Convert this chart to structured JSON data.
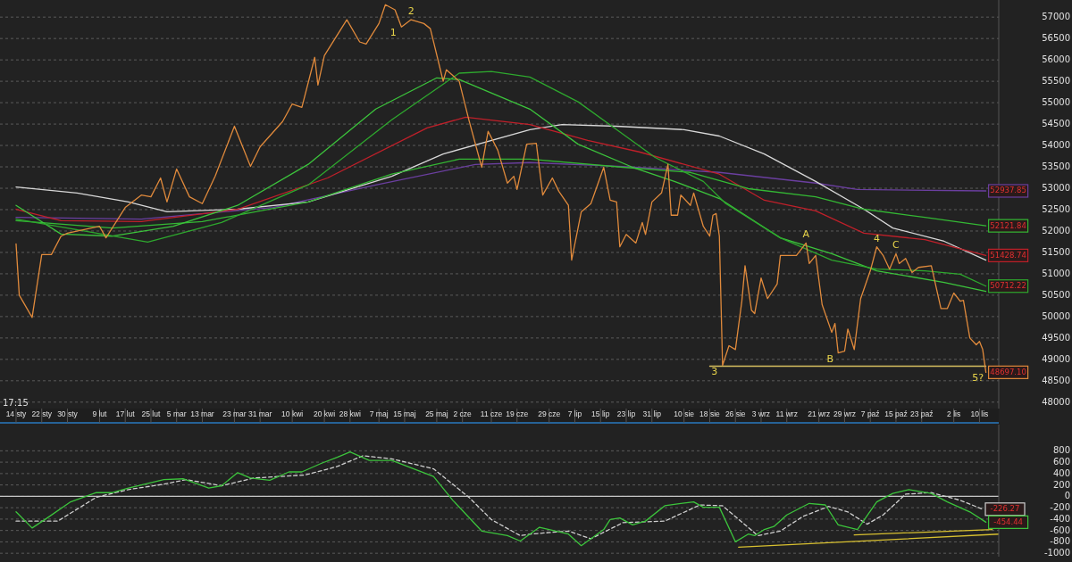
{
  "chart_data": [
    {
      "type": "line",
      "xlim": [
        "--01-09",
        "--11-16"
      ],
      "xticks": [
        {
          "value": "--01-14",
          "label": "14 sty"
        },
        {
          "value": "--01-22",
          "label": "22 sty"
        },
        {
          "value": "--01-30",
          "label": "30 sty"
        },
        {
          "value": "--02-09",
          "label": "9 lut"
        },
        {
          "value": "--02-17",
          "label": "17 lut"
        },
        {
          "value": "--02-25",
          "label": "25 lut"
        },
        {
          "value": "--03-05",
          "label": "5 mar"
        },
        {
          "value": "--03-13",
          "label": "13 mar"
        },
        {
          "value": "--03-23",
          "label": "23 mar"
        },
        {
          "value": "--03-31",
          "label": "31 mar"
        },
        {
          "value": "--04-10",
          "label": "10 kwi"
        },
        {
          "value": "--04-20",
          "label": "20 kwi"
        },
        {
          "value": "--04-28",
          "label": "28 kwi"
        },
        {
          "value": "--05-07",
          "label": "7 maj"
        },
        {
          "value": "--05-15",
          "label": "15 maj"
        },
        {
          "value": "--05-25",
          "label": "25 maj"
        },
        {
          "value": "--06-02",
          "label": "2 cze"
        },
        {
          "value": "--06-11",
          "label": "11 cze"
        },
        {
          "value": "--06-19",
          "label": "19 cze"
        },
        {
          "value": "--06-29",
          "label": "29 cze"
        },
        {
          "value": "--07-07",
          "label": "7 lip"
        },
        {
          "value": "--07-15",
          "label": "15 lip"
        },
        {
          "value": "--07-23",
          "label": "23 lip"
        },
        {
          "value": "--07-31",
          "label": "31 lip"
        },
        {
          "value": "--08-10",
          "label": "10 sie"
        },
        {
          "value": "--08-18",
          "label": "18 sie"
        },
        {
          "value": "--08-26",
          "label": "26 sie"
        },
        {
          "value": "--09-03",
          "label": "3 wrz"
        },
        {
          "value": "--09-11",
          "label": "11 wrz"
        },
        {
          "value": "--09-21",
          "label": "21 wrz"
        },
        {
          "value": "--09-29",
          "label": "29 wrz"
        },
        {
          "value": "--10-07",
          "label": "7 paź"
        },
        {
          "value": "--10-15",
          "label": "15 paź"
        },
        {
          "value": "--10-23",
          "label": "23 paź"
        },
        {
          "value": "--11-02",
          "label": "2 lis"
        },
        {
          "value": "--11-10",
          "label": "10 lis"
        }
      ],
      "ylim": [
        47850,
        57400
      ],
      "yticks": [
        48000,
        48500,
        49000,
        49500,
        50000,
        50500,
        51000,
        51500,
        52000,
        52500,
        53000,
        53500,
        54000,
        54500,
        55000,
        55500,
        56000,
        56500,
        57000
      ],
      "grid": "y",
      "annotations": [
        {
          "text": "1",
          "x": "--05-14",
          "y": 56770
        },
        {
          "text": "2",
          "x": "--05-17",
          "y": 56940
        },
        {
          "text": "3",
          "x": "--08-22",
          "y": 48860
        },
        {
          "text": "A",
          "x": "--09-17",
          "y": 51720
        },
        {
          "text": "B",
          "x": "--09-27",
          "y": 49150
        },
        {
          "text": "4",
          "x": "--10-09",
          "y": 51630
        },
        {
          "text": "C",
          "x": "--10-15",
          "y": 51470
        },
        {
          "text": "5?",
          "x": "--11-12",
          "y": 48697.1
        },
        "17:15"
      ],
      "series": [
        {
          "color": "#6b3fa0",
          "x": [
            "--01-14",
            "--02-22",
            "--04-04",
            "--05-06",
            "--06-06",
            "--06-23",
            "--07-22",
            "--08-21",
            "--09-20",
            "--10-03",
            "--11-12"
          ],
          "values": [
            52320,
            52280,
            52550,
            53075,
            53555,
            53600,
            53510,
            53370,
            53120,
            52970,
            52937.85
          ],
          "value_labels": [
            null,
            null,
            null,
            null,
            null,
            null,
            null,
            null,
            null,
            null,
            "52937.85"
          ]
        },
        {
          "color": "#d8d8d8",
          "x": [
            "--01-14",
            "--02-02",
            "--02-18",
            "--03-02",
            "--03-24",
            "--04-15",
            "--05-11",
            "--05-27",
            "--06-23",
            "--07-03",
            "--07-20",
            "--08-10",
            "--08-21",
            "--09-04",
            "--09-20",
            "--10-05",
            "--10-14",
            "--10-30",
            "--11-12"
          ],
          "values": [
            53030,
            52890,
            52680,
            52450,
            52510,
            52680,
            53280,
            53800,
            54370,
            54490,
            54450,
            54370,
            54220,
            53800,
            53160,
            52510,
            52070,
            51760,
            51320
          ]
        },
        {
          "color": "#c0202a",
          "x": [
            "--01-14",
            "--01-28",
            "--02-22",
            "--03-24",
            "--04-21",
            "--05-22",
            "--06-03",
            "--06-23",
            "--07-11",
            "--07-27",
            "--08-21",
            "--09-04",
            "--09-20",
            "--10-05",
            "--10-24",
            "--11-12"
          ],
          "values": [
            52510,
            52240,
            52220,
            52510,
            53240,
            54410,
            54660,
            54490,
            54120,
            53850,
            53330,
            52720,
            52470,
            51950,
            51800,
            51428.74
          ],
          "value_labels": [
            null,
            null,
            null,
            null,
            null,
            null,
            null,
            null,
            null,
            null,
            null,
            null,
            null,
            null,
            null,
            "51428.74"
          ]
        },
        {
          "color": "#34b834",
          "x": [
            "--01-14",
            "--02-13",
            "--03-13",
            "--04-15",
            "--05-11",
            "--06-01",
            "--06-23",
            "--07-22",
            "--08-12",
            "--08-30",
            "--09-20",
            "--10-05",
            "--10-24",
            "--11-12"
          ],
          "values": [
            52240,
            52070,
            52220,
            52680,
            53330,
            53680,
            53680,
            53490,
            53370,
            52990,
            52800,
            52510,
            52320,
            52121.84
          ],
          "value_labels": [
            null,
            null,
            null,
            null,
            null,
            null,
            null,
            null,
            null,
            null,
            null,
            null,
            null,
            "52121.84"
          ]
        },
        {
          "color": "#3cc43c",
          "x": [
            "--01-14",
            "--01-28",
            "--02-13",
            "--03-04",
            "--03-24",
            "--04-15",
            "--05-06",
            "--05-25",
            "--06-01",
            "--06-23",
            "--07-08",
            "--07-25",
            "--08-07",
            "--08-21",
            "--09-09",
            "--09-25",
            "--10-09",
            "--10-30",
            "--11-12"
          ],
          "values": [
            52600,
            51930,
            51880,
            52110,
            52600,
            53560,
            54850,
            55580,
            55540,
            54850,
            54030,
            53490,
            53160,
            52760,
            51840,
            51470,
            51070,
            50800,
            50590
          ]
        },
        {
          "color": "#2ea82e",
          "x": [
            "--01-14",
            "--02-24",
            "--03-19",
            "--04-15",
            "--05-11",
            "--06-01",
            "--06-11",
            "--06-23",
            "--07-08",
            "--07-20",
            "--08-01",
            "--08-16",
            "--08-23",
            "--09-09",
            "--09-25",
            "--10-09",
            "--10-24",
            "--11-04",
            "--11-12"
          ],
          "values": [
            52280,
            51740,
            52200,
            53080,
            54600,
            55690,
            55730,
            55600,
            55020,
            54370,
            53720,
            53160,
            52640,
            51840,
            51320,
            51110,
            51070,
            50990,
            50712.22
          ],
          "value_labels": [
            null,
            null,
            null,
            null,
            null,
            null,
            null,
            null,
            null,
            null,
            null,
            null,
            null,
            null,
            null,
            null,
            null,
            null,
            "50712.22"
          ]
        },
        {
          "color": "#d8c060",
          "x": [
            "--08-18",
            "--11-12"
          ],
          "values": [
            48840,
            48840
          ]
        },
        {
          "color": "#e08a3c",
          "x": [
            "--01-14",
            "--01-15",
            "--01-19",
            "--01-22",
            "--01-25",
            "--01-28",
            "--01-30",
            "--02-09",
            "--02-11",
            "--02-17",
            "--02-22",
            "--02-25",
            "--02-28",
            "--03-02",
            "--03-05",
            "--03-09",
            "--03-13",
            "--03-17",
            "--03-23",
            "--03-28",
            "--03-31",
            "--04-07",
            "--04-10",
            "--04-13",
            "--04-17",
            "--04-18",
            "--04-20",
            "--04-23",
            "--04-27",
            "--05-01",
            "--05-03",
            "--05-07",
            "--05-09",
            "--05-12",
            "--05-14",
            "--05-17",
            "--05-21",
            "--05-23",
            "--05-26",
            "--05-27",
            "--05-28",
            "--06-01",
            "--06-04",
            "--06-08",
            "--06-10",
            "--06-13",
            "--06-16",
            "--06-18",
            "--06-19",
            "--06-22",
            "--06-25",
            "--06-27",
            "--06-30",
            "--07-02",
            "--07-05",
            "--07-06",
            "--07-09",
            "--07-12",
            "--07-16",
            "--07-18",
            "--07-20",
            "--07-21",
            "--07-23",
            "--07-26",
            "--07-28",
            "--07-29",
            "--07-31",
            "--08-03",
            "--08-05",
            "--08-06",
            "--08-08",
            "--08-09",
            "--08-12",
            "--08-13",
            "--08-16",
            "--08-18",
            "--08-19",
            "--08-20",
            "--08-21",
            "--08-22",
            "--08-24",
            "--08-26",
            "--08-28",
            "--08-29",
            "--08-31",
            "--09-01",
            "--09-03",
            "--09-05",
            "--09-08",
            "--09-09",
            "--09-14",
            "--09-17",
            "--09-18",
            "--09-20",
            "--09-22",
            "--09-25",
            "--09-26",
            "--09-27",
            "--09-29",
            "--09-30",
            "--10-02",
            "--10-04",
            "--10-07",
            "--10-09",
            "--10-11",
            "--10-13",
            "--10-15",
            "--10-16",
            "--10-18",
            "--10-20",
            "--10-22",
            "--10-26",
            "--10-29",
            "--10-31",
            "--11-02",
            "--11-04",
            "--11-05",
            "--11-07",
            "--11-09",
            "--11-10",
            "--11-11",
            "--11-12"
          ],
          "values": [
            51700,
            50500,
            49980,
            51450,
            51450,
            51880,
            51950,
            52110,
            51840,
            52550,
            52840,
            52800,
            53240,
            52680,
            53450,
            52800,
            52640,
            53280,
            54450,
            53510,
            53970,
            54560,
            54970,
            54890,
            56060,
            55410,
            56100,
            56460,
            56940,
            56420,
            56370,
            56850,
            57290,
            57170,
            56770,
            56940,
            56850,
            56730,
            55810,
            55500,
            55770,
            55500,
            54600,
            53490,
            54330,
            53890,
            53120,
            53280,
            52970,
            54030,
            54050,
            52840,
            53240,
            52930,
            52600,
            51320,
            52450,
            52640,
            53490,
            52720,
            52680,
            51630,
            51920,
            51720,
            52200,
            51920,
            52680,
            52890,
            53560,
            52370,
            52370,
            52840,
            52600,
            52890,
            52110,
            51880,
            52370,
            52410,
            51880,
            48860,
            49320,
            49230,
            50360,
            51190,
            50150,
            50070,
            50900,
            50420,
            50760,
            51430,
            51430,
            51720,
            51240,
            51430,
            50280,
            49630,
            49840,
            49150,
            49190,
            49710,
            49230,
            50420,
            51070,
            51630,
            51430,
            51110,
            51470,
            51240,
            51360,
            51030,
            51150,
            51190,
            50190,
            50190,
            50550,
            50360,
            50380,
            49500,
            49340,
            49420,
            49230,
            48697.1
          ],
          "value_labels": [
            null,
            null,
            null,
            null,
            null,
            null,
            null,
            null,
            null,
            null,
            null,
            null,
            null,
            null,
            null,
            null,
            null,
            null,
            null,
            null,
            null,
            null,
            null,
            null,
            null,
            null,
            null,
            null,
            null,
            null,
            null,
            null,
            null,
            null,
            null,
            null,
            null,
            null,
            null,
            null,
            null,
            null,
            null,
            null,
            null,
            null,
            null,
            null,
            null,
            null,
            null,
            null,
            null,
            null,
            null,
            null,
            null,
            null,
            null,
            null,
            null,
            null,
            null,
            null,
            null,
            null,
            null,
            null,
            null,
            null,
            null,
            null,
            null,
            null,
            null,
            null,
            null,
            null,
            null,
            null,
            null,
            null,
            null,
            null,
            null,
            null,
            null,
            null,
            null,
            null,
            null,
            null,
            null,
            null,
            null,
            null,
            null,
            null,
            null,
            null,
            null,
            null,
            null,
            null,
            null,
            null,
            null,
            null,
            null,
            null,
            null,
            null,
            null,
            null,
            null,
            null,
            null,
            null,
            null,
            null,
            null,
            "48697.10"
          ]
        }
      ]
    },
    {
      "type": "line",
      "xlim": [
        "--01-09",
        "--11-16"
      ],
      "tick_labels": "y",
      "ylim": [
        -1060,
        1260
      ],
      "yticks": [
        -1000,
        -800,
        -600,
        -400,
        -200,
        0,
        200,
        400,
        600,
        800
      ],
      "grid": "y",
      "ref_lines": [
        {
          "axis": "y",
          "value": 0,
          "color": "#c8c8c8"
        }
      ],
      "series": [
        {
          "color": "#d0d0d0",
          "line_style": "dashed",
          "x": [
            "--01-14",
            "--01-27",
            "--02-08",
            "--02-18",
            "--03-01",
            "--03-08",
            "--03-19",
            "--03-29",
            "--04-14",
            "--04-24",
            "--05-02",
            "--05-11",
            "--05-24",
            "--06-04",
            "--06-11",
            "--06-20",
            "--06-23",
            "--07-05",
            "--07-12",
            "--07-22",
            "--08-04",
            "--08-15",
            "--08-22",
            "--09-02",
            "--09-09",
            "--09-16",
            "--09-24",
            "--09-30",
            "--10-06",
            "--10-11",
            "--10-18",
            "--10-26",
            "--11-04",
            "--11-11"
          ],
          "values": [
            -435,
            -435,
            -16,
            119,
            213,
            294,
            186,
            321,
            375,
            524,
            713,
            659,
            483,
            -16,
            -408,
            -691,
            -664,
            -610,
            -745,
            -462,
            -435,
            -151,
            -165,
            -691,
            -610,
            -354,
            -178,
            -273,
            -489,
            -327,
            38,
            65,
            -70,
            -226.27
          ],
          "value_labels": [
            null,
            null,
            null,
            null,
            null,
            null,
            null,
            null,
            null,
            null,
            null,
            null,
            null,
            null,
            null,
            null,
            null,
            null,
            null,
            null,
            null,
            null,
            null,
            null,
            null,
            null,
            null,
            null,
            null,
            null,
            null,
            null,
            null,
            "-226.27"
          ]
        },
        {
          "color": "#3cc43c",
          "x": [
            "--01-14",
            "--01-19",
            "--01-23",
            "--01-31",
            "--02-08",
            "--02-13",
            "--02-18",
            "--03-01",
            "--03-07",
            "--03-15",
            "--03-19",
            "--03-24",
            "--03-28",
            "--04-03",
            "--04-09",
            "--04-13",
            "--04-19",
            "--04-24",
            "--04-28",
            "--05-04",
            "--05-11",
            "--05-24",
            "--05-30",
            "--06-08",
            "--06-16",
            "--06-20",
            "--06-23",
            "--06-26",
            "--06-29",
            "--07-05",
            "--07-09",
            "--07-12",
            "--07-16",
            "--07-18",
            "--07-21",
            "--07-25",
            "--07-29",
            "--08-04",
            "--08-09",
            "--08-13",
            "--08-16",
            "--08-21",
            "--08-26",
            "--08-30",
            "--09-01",
            "--09-04",
            "--09-07",
            "--09-11",
            "--09-18",
            "--09-23",
            "--09-27",
            "--10-03",
            "--10-09",
            "--10-14",
            "--10-19",
            "--10-26",
            "--10-31",
            "--11-07",
            "--11-12"
          ],
          "values": [
            -273,
            -556,
            -408,
            -97,
            65,
            65,
            146,
            294,
            308,
            146,
            186,
            416,
            321,
            281,
            429,
            429,
            578,
            686,
            780,
            632,
            632,
            348,
            -70,
            -610,
            -691,
            -786,
            -664,
            -543,
            -583,
            -664,
            -867,
            -745,
            -583,
            -408,
            -381,
            -502,
            -435,
            -165,
            -124,
            -97,
            -192,
            -192,
            -799,
            -664,
            -691,
            -583,
            -530,
            -327,
            -124,
            -151,
            -502,
            -583,
            -97,
            51,
            119,
            51,
            -97,
            -273,
            -454.44
          ],
          "value_labels": [
            null,
            null,
            null,
            null,
            null,
            null,
            null,
            null,
            null,
            null,
            null,
            null,
            null,
            null,
            null,
            null,
            null,
            null,
            null,
            null,
            null,
            null,
            null,
            null,
            null,
            null,
            null,
            null,
            null,
            null,
            null,
            null,
            null,
            null,
            null,
            null,
            null,
            null,
            null,
            null,
            null,
            null,
            null,
            null,
            null,
            null,
            null,
            null,
            null,
            null,
            null,
            null,
            null,
            null,
            null,
            null,
            null,
            null,
            "-454.44"
          ]
        },
        {
          "color": "#d8c030",
          "x": [
            "--08-27",
            "--11-16"
          ],
          "values": [
            -894,
            -664
          ]
        },
        {
          "color": "#d8c030",
          "x": [
            "--10-02",
            "--11-14"
          ],
          "values": [
            -678,
            -583
          ]
        }
      ]
    }
  ]
}
